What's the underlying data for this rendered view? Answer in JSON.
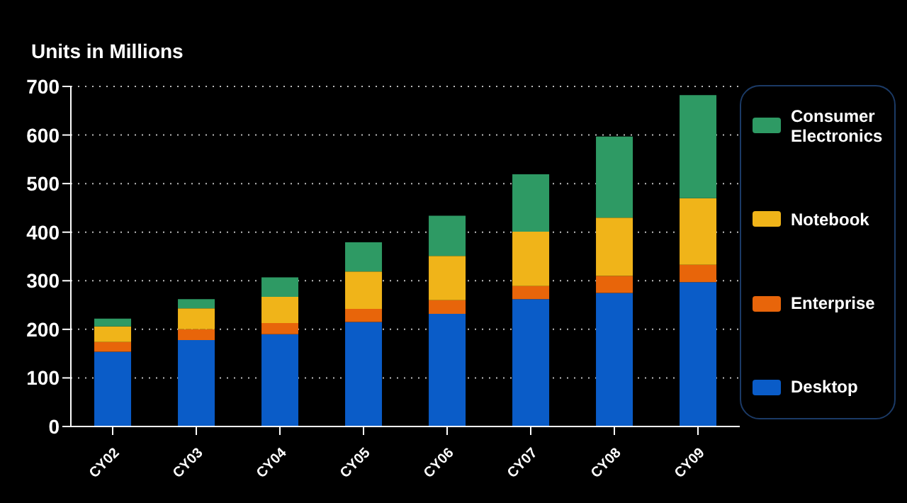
{
  "chart_data": {
    "type": "bar",
    "title": "Units in Millions",
    "stacked": true,
    "categories": [
      "CY02",
      "CY03",
      "CY04",
      "CY05",
      "CY06",
      "CY07",
      "CY08",
      "CY09"
    ],
    "series": [
      {
        "name": "Desktop",
        "color": "#0a5cc8",
        "values": [
          154,
          178,
          190,
          215,
          232,
          262,
          275,
          297
        ]
      },
      {
        "name": "Enterprise",
        "color": "#e8650a",
        "values": [
          20,
          22,
          23,
          27,
          28,
          27,
          35,
          36
        ]
      },
      {
        "name": "Notebook",
        "color": "#f0b419",
        "values": [
          32,
          43,
          54,
          77,
          91,
          112,
          120,
          137
        ]
      },
      {
        "name": "Consumer Electronics",
        "color": "#2e9a64",
        "values": [
          16,
          19,
          40,
          60,
          83,
          118,
          167,
          212
        ]
      }
    ],
    "ylim": [
      0,
      700
    ],
    "yticks": [
      0,
      100,
      200,
      300,
      400,
      500,
      600,
      700
    ],
    "grid": "y",
    "legend": "right"
  }
}
